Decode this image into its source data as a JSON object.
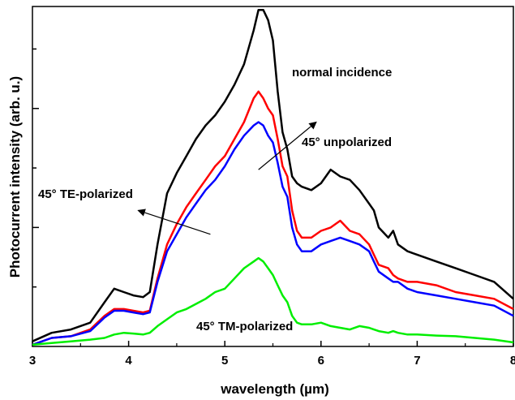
{
  "chart_data": {
    "type": "line",
    "title": "",
    "xlabel": "wavelength (µm)",
    "ylabel": "Photocurrent intensity (arb. u.)",
    "xlim": [
      3,
      8
    ],
    "ylim": [
      0,
      100
    ],
    "x_ticks": [
      3,
      4,
      5,
      6,
      7,
      8
    ],
    "x_tick_labels": [
      "3",
      "4",
      "5",
      "6",
      "7",
      "8"
    ],
    "y_ticks": [
      17.5,
      35,
      52.5,
      70,
      87.5
    ],
    "y_tick_labels_shown": false,
    "grid": false,
    "legend": "none",
    "x": [
      3.0,
      3.2,
      3.4,
      3.6,
      3.75,
      3.85,
      3.95,
      4.05,
      4.15,
      4.22,
      4.3,
      4.4,
      4.5,
      4.6,
      4.7,
      4.8,
      4.9,
      5.0,
      5.1,
      5.2,
      5.3,
      5.35,
      5.4,
      5.45,
      5.5,
      5.55,
      5.6,
      5.65,
      5.7,
      5.75,
      5.8,
      5.9,
      6.0,
      6.1,
      6.2,
      6.3,
      6.4,
      6.5,
      6.55,
      6.6,
      6.7,
      6.75,
      6.8,
      6.9,
      7.0,
      7.2,
      7.4,
      7.6,
      7.8,
      8.0
    ],
    "series": [
      {
        "color": "#000000",
        "values": [
          1.5,
          4,
          5,
          7,
          13,
          17,
          16,
          15,
          14.5,
          16,
          30,
          45,
          51,
          56,
          61,
          65,
          68,
          72,
          77,
          83,
          93,
          99,
          99,
          96,
          90,
          75,
          63,
          58,
          50,
          48,
          47,
          46,
          48,
          52,
          50,
          49,
          46,
          42,
          40,
          35,
          32,
          34,
          30,
          28,
          27,
          25,
          23,
          21,
          19,
          14
        ]
      },
      {
        "color": "#ff0000",
        "values": [
          0.5,
          2.5,
          3,
          5,
          9,
          11,
          11,
          10.5,
          10,
          10.5,
          20,
          30,
          36,
          41,
          45,
          49,
          53,
          56,
          61,
          66,
          73,
          75,
          73,
          70,
          68,
          61,
          53,
          50,
          40,
          34,
          32,
          32,
          34,
          35,
          37,
          34,
          33,
          30,
          27,
          24,
          23,
          21,
          20,
          19,
          19,
          18,
          16,
          15,
          14,
          11
        ]
      },
      {
        "color": "#0000ff",
        "values": [
          0.5,
          2.5,
          3,
          4.5,
          8.5,
          10.5,
          10.5,
          10,
          9.5,
          10,
          19,
          28,
          33,
          38,
          42,
          46,
          49,
          53,
          58,
          62,
          65,
          66,
          65,
          62,
          60,
          54,
          47,
          44,
          35,
          30,
          28,
          28,
          30,
          31,
          32,
          31,
          30,
          28,
          25,
          22,
          20,
          19,
          19,
          17,
          16,
          15,
          14,
          13,
          12,
          9
        ]
      },
      {
        "color": "#00ee00",
        "values": [
          0.5,
          1,
          1.5,
          2,
          2.5,
          3.5,
          4,
          3.8,
          3.5,
          4,
          6,
          8,
          10,
          11,
          12.5,
          14,
          16,
          17,
          20,
          23,
          25,
          26,
          25,
          23,
          21,
          18,
          15,
          13,
          9,
          7,
          6.5,
          6.5,
          7,
          6,
          5.5,
          5,
          6,
          5.5,
          5,
          4.5,
          4,
          4.5,
          4,
          3.5,
          3.5,
          3.2,
          3,
          2.5,
          2,
          1.2
        ]
      }
    ],
    "annotations": [
      {
        "text": "normal incidence"
      },
      {
        "text": "45° unpolarized"
      },
      {
        "text": "45° TE-polarized"
      },
      {
        "text": "45° TM-polarized"
      }
    ]
  }
}
